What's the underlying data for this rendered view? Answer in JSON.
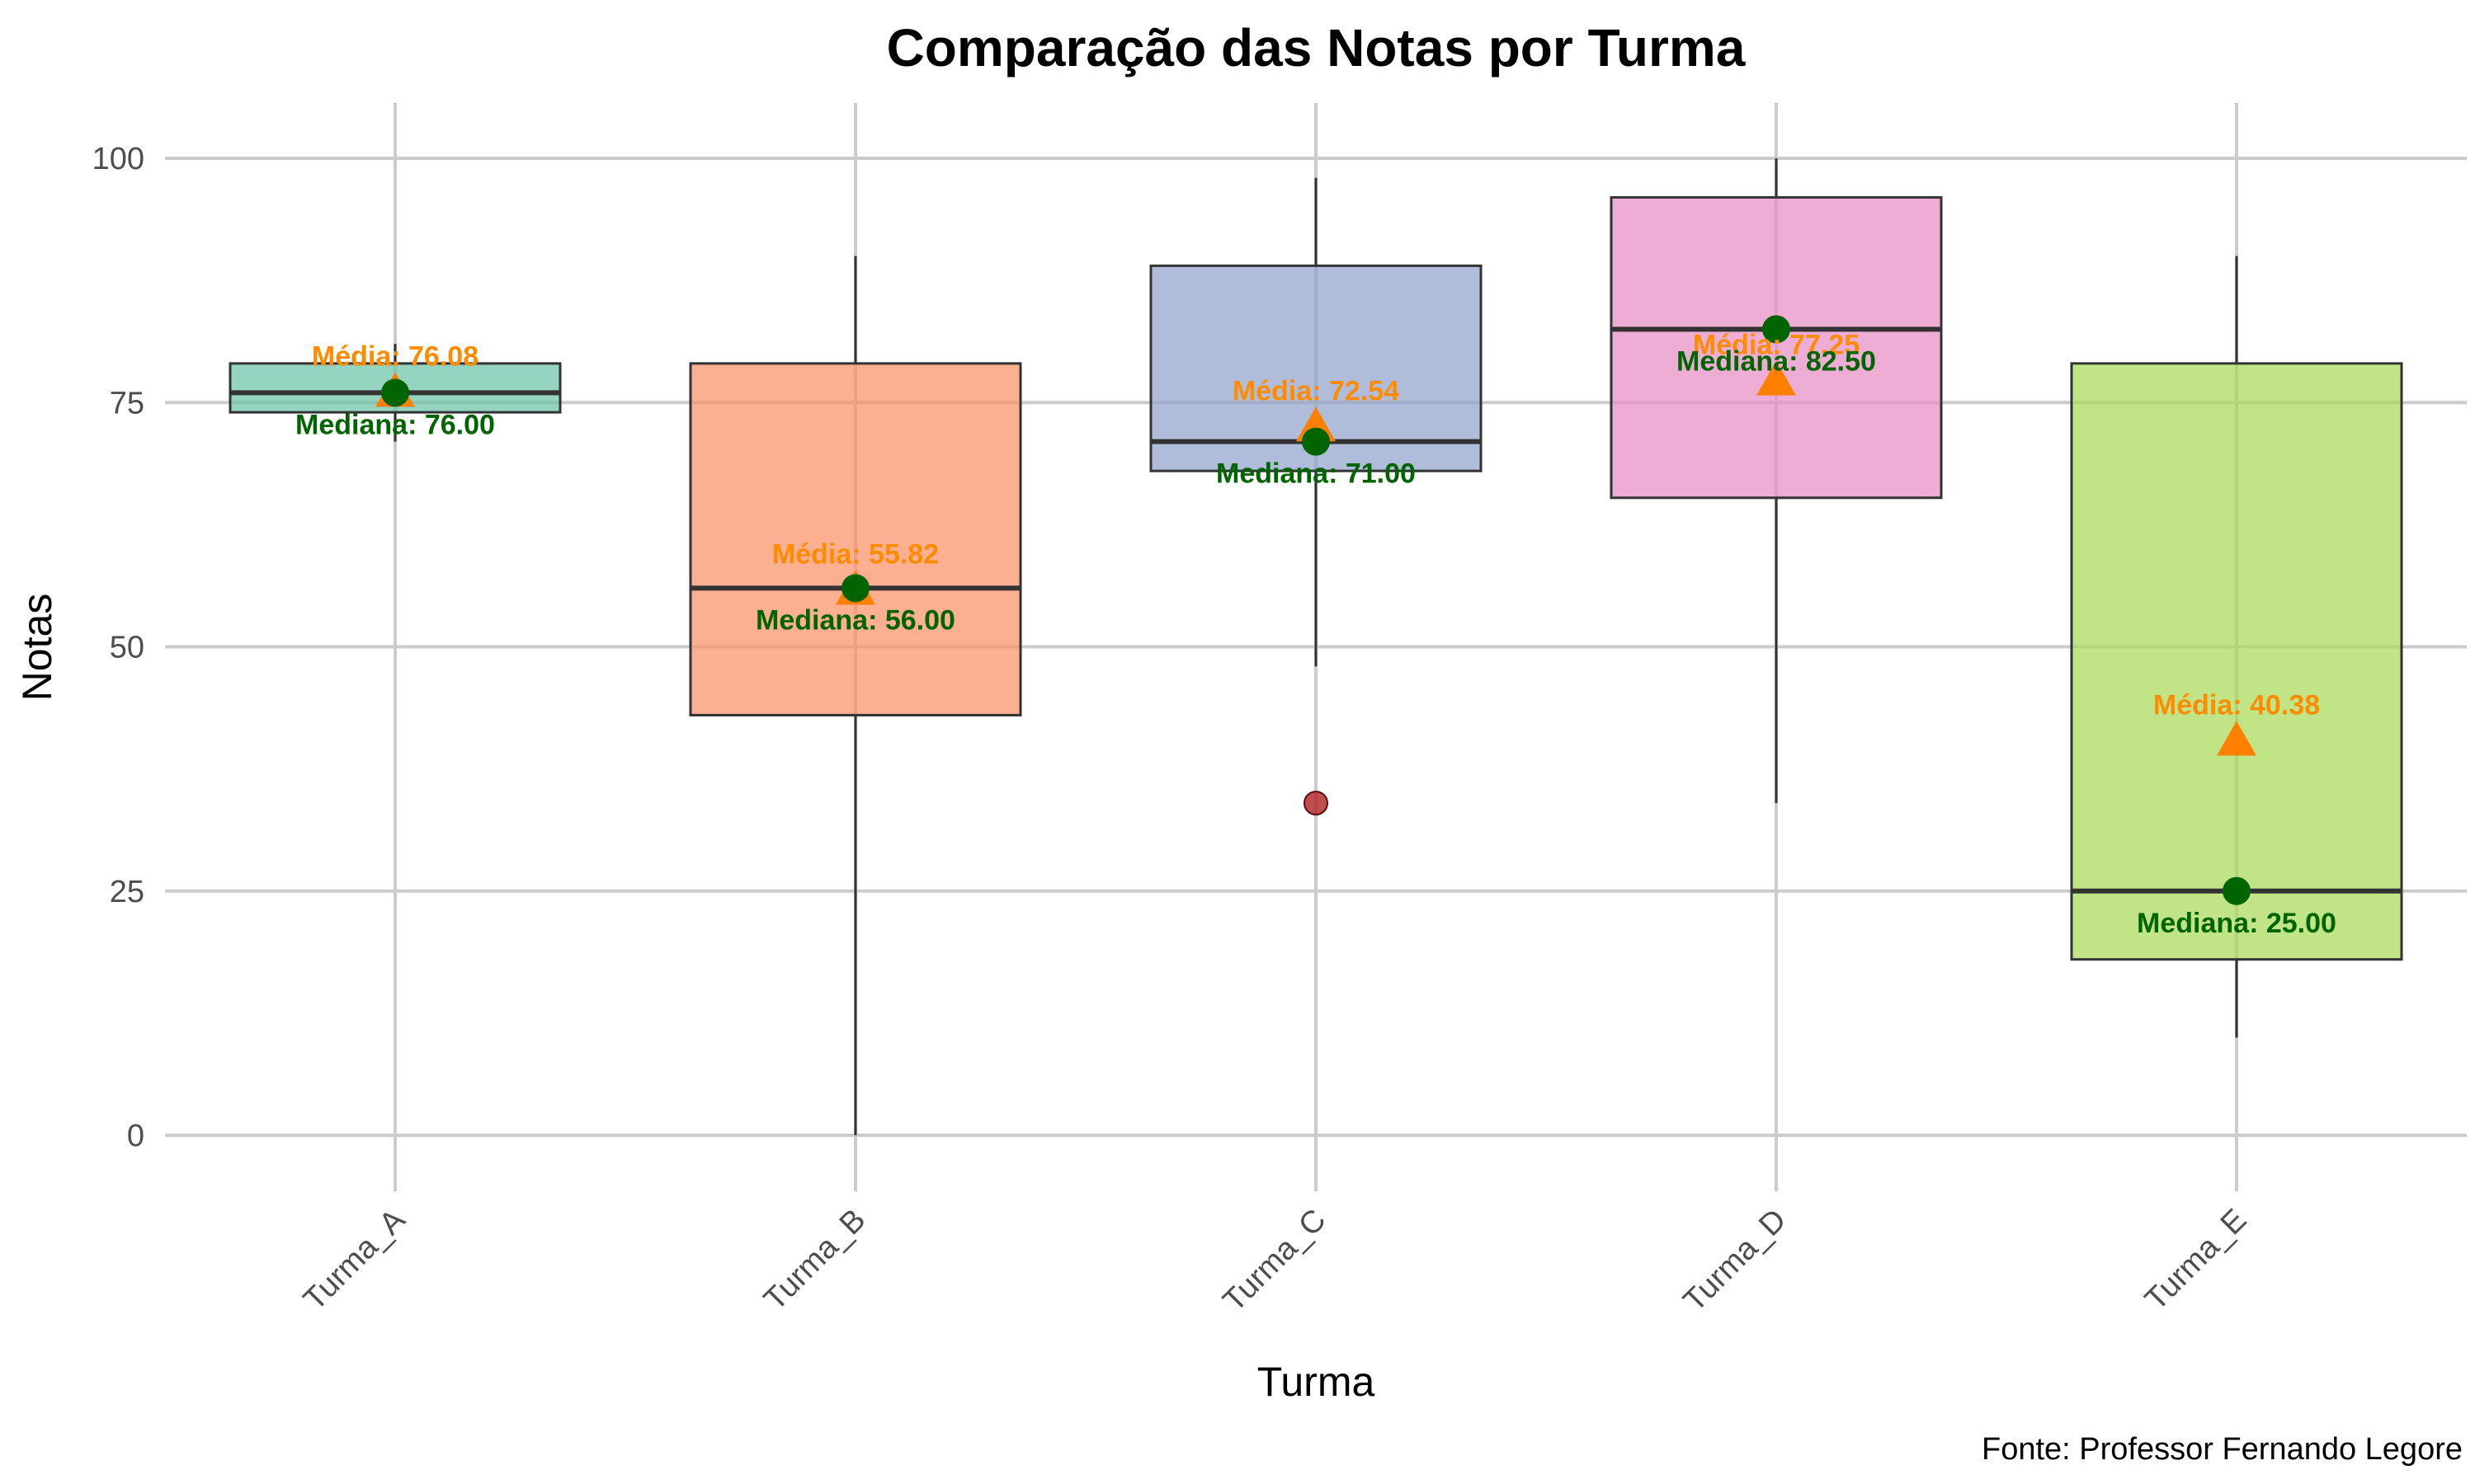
{
  "chart_data": {
    "type": "boxplot",
    "title": "Comparação das Notas por Turma",
    "xlabel": "Turma",
    "ylabel": "Notas",
    "caption": "Fonte: Professor Fernando Legore",
    "ylim": [
      -5,
      105
    ],
    "yticks": [
      0,
      25,
      50,
      75,
      100
    ],
    "grid": true,
    "legend": "none",
    "categories": [
      "Turma_A",
      "Turma_B",
      "Turma_C",
      "Turma_D",
      "Turma_E"
    ],
    "boxes": [
      {
        "name": "Turma_A",
        "whisker_low": 71,
        "q1": 74,
        "median": 76,
        "q3": 79,
        "whisker_high": 81,
        "mean": 76.08,
        "outliers": [],
        "color": "#66c2a5",
        "mean_label": "Média: 76.08",
        "median_label": "Mediana: 76.00"
      },
      {
        "name": "Turma_B",
        "whisker_low": 0,
        "q1": 43,
        "median": 56,
        "q3": 79,
        "whisker_high": 90,
        "mean": 55.82,
        "outliers": [],
        "color": "#fc8d62",
        "mean_label": "Média: 55.82",
        "median_label": "Mediana: 56.00"
      },
      {
        "name": "Turma_C",
        "whisker_low": 48,
        "q1": 68,
        "median": 71,
        "q3": 89,
        "whisker_high": 98,
        "mean": 72.54,
        "outliers": [
          34
        ],
        "color": "#8da0cb",
        "mean_label": "Média: 72.54",
        "median_label": "Mediana: 71.00"
      },
      {
        "name": "Turma_D",
        "whisker_low": 34,
        "q1": 65.25,
        "median": 82.5,
        "q3": 96,
        "whisker_high": 100,
        "mean": 77.25,
        "outliers": [],
        "color": "#e78ac3",
        "mean_label": "Média: 77.25",
        "median_label": "Mediana: 82.50"
      },
      {
        "name": "Turma_E",
        "whisker_low": 10,
        "q1": 18,
        "median": 25,
        "q3": 79,
        "whisker_high": 90,
        "mean": 40.38,
        "outliers": [],
        "color": "#a6d854",
        "mean_label": "Média: 40.38",
        "median_label": "Mediana: 25.00"
      }
    ],
    "colors": {
      "mean_marker": "#ff8000",
      "median_marker": "#006400",
      "outlier": "#b22222",
      "box_stroke": "#333333"
    }
  }
}
